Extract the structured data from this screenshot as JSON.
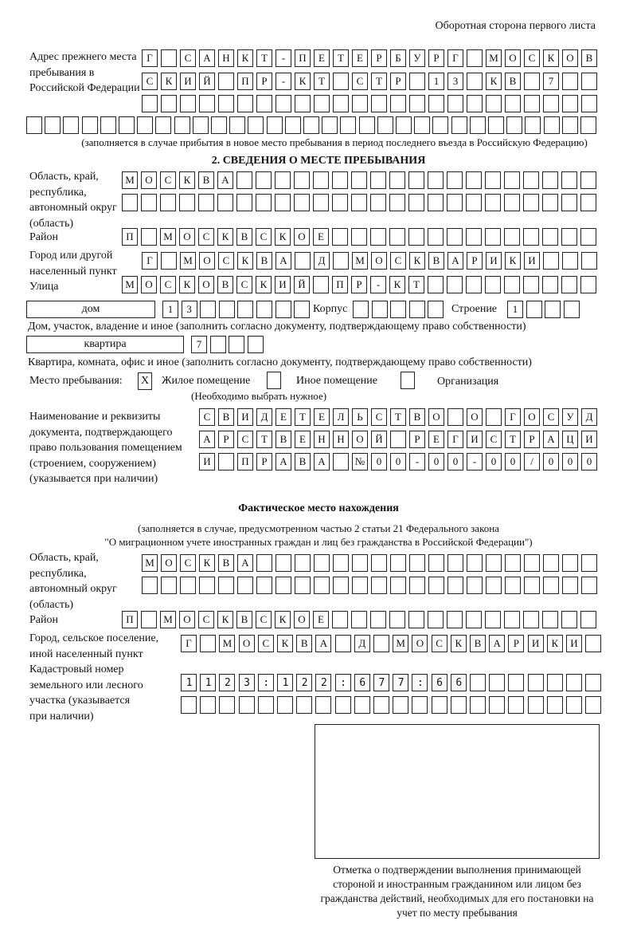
{
  "header": "Оборотная сторона первого листа",
  "prev_address": {
    "label": "Адрес прежнего места пребывания в Российской Федерации",
    "rows": [
      "Г САНКТ-ПЕТЕРБУРГ МОСКОВ",
      "СКИЙ ПР-КТ СТР 13 КВ 7",
      "",
      ""
    ],
    "note": "(заполняется в случае прибытия в новое место пребывания в период последнего въезда в Российскую Федерацию)"
  },
  "section2": {
    "title": "2. СВЕДЕНИЯ О МЕСТЕ ПРЕБЫВАНИЯ",
    "region_label": "Область, край, республика, автономный округ (область)",
    "region_rows": [
      "МОСКВА",
      ""
    ],
    "district_label": "Район",
    "district": "П МОСКВСКОЕ",
    "city_label": "Город или другой населенный пункт",
    "city": "Г МОСКВА Д МОСКВАРИКИ",
    "street_label": "Улица",
    "street": "МОСКОВСКИЙ ПР-КТ",
    "house_type": "дом",
    "house": "13",
    "korpus_label": "Корпус",
    "korpus": "",
    "building_label": "Строение",
    "building": "1",
    "house_note": "Дом, участок, владение и иное (заполнить согласно документу, подтверждающему право собственности)",
    "flat_type": "квартира",
    "flat": "7",
    "flat_note": "Квартира, комната, офис и иное (заполнить согласно документу, подтверждающему право собственности)",
    "stay_label": "Место пребывания:",
    "stay_options": [
      {
        "label": "Жилое помещение",
        "mark": "Х"
      },
      {
        "label": "Иное помещение",
        "mark": ""
      },
      {
        "label": "Организация",
        "mark": ""
      }
    ],
    "stay_note": "(Необходимо выбрать нужное)",
    "doc_label": "Наименование и реквизиты документа, подтверждающего право пользования помещением (строением, сооружением) (указывается при наличии)",
    "doc_rows": [
      "СВИДЕТЕЛЬСТВО О ГОСУД",
      "АРСТВЕННОЙ РЕГИСТРАЦИ",
      "И ПРАВА №00-00-00/000"
    ]
  },
  "actual": {
    "title": "Фактическое место нахождения",
    "note1": "(заполняется в случае, предусмотренном частью 2 статьи 21 Федерального закона",
    "note2": "\"О миграционном учете иностранных граждан и лиц без гражданства в Российской Федерации\")",
    "region_label": "Область, край, республика, автономный округ (область)",
    "region_rows": [
      "МОСКВА",
      ""
    ],
    "district_label": "Район",
    "district": "П МОСКВСКОЕ",
    "city_label": "Город, сельское поселение, иной населенный пункт",
    "city": "Г МОСКВА Д МОСКВАРИКИ",
    "cadastre_label": "Кадастровый номер земельного или лесного участка (указывается при наличии)",
    "cadastre_rows": [
      "1123:122:677:66",
      ""
    ]
  },
  "stamp_caption": "Отметка о подтверждении выполнения принимающей стороной и иностранным гражданином или лицом без гражданства действий, необходимых для его постановки на учет по месту пребывания"
}
